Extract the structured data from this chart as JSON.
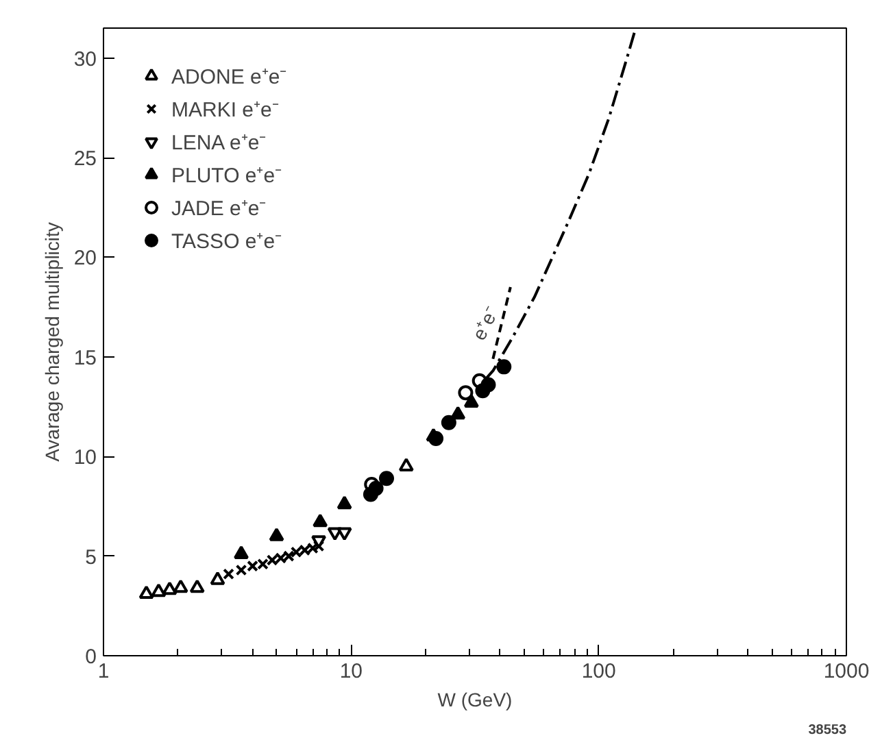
{
  "chart_data": {
    "type": "scatter",
    "xlabel": "W (GeV)",
    "ylabel": "Avarage charged multiplicity",
    "log": "x",
    "xlim": [
      1,
      1000
    ],
    "xticks": [
      1,
      10,
      100,
      1000
    ],
    "ylim": [
      0,
      31.5
    ],
    "yticks": [
      0,
      5,
      10,
      15,
      20,
      25,
      30
    ],
    "grid": false,
    "legend": "top left",
    "series": [
      {
        "name": "ADONE e⁺e⁻",
        "color": "#000000",
        "marker": "triangle_open",
        "x": [
          1.49,
          1.67,
          1.85,
          2.05,
          2.39,
          2.89,
          16.7
        ],
        "values": [
          3.1,
          3.2,
          3.3,
          3.4,
          3.4,
          3.8,
          9.5
        ]
      },
      {
        "name": "MARKI e⁺e⁻",
        "color": "#000000",
        "marker": "cross",
        "x": [
          3.2,
          3.6,
          4.0,
          4.4,
          4.8,
          5.2,
          5.6,
          6.0,
          6.5,
          7.0,
          7.4
        ],
        "values": [
          4.1,
          4.3,
          4.5,
          4.6,
          4.8,
          4.9,
          5.0,
          5.2,
          5.3,
          5.4,
          5.5
        ]
      },
      {
        "name": "LENA e⁺e⁻",
        "color": "#000000",
        "x": [
          7.4,
          8.6,
          9.4
        ],
        "values": [
          5.8,
          6.2,
          6.2
        ]
      },
      {
        "name": "PLUTO e⁺e⁻",
        "color": "#000000",
        "marker": "triangle",
        "x": [
          3.6,
          5.0,
          7.5,
          9.4,
          21.5,
          27,
          30.6
        ],
        "values": [
          5.1,
          6.0,
          6.7,
          7.6,
          11.0,
          12.1,
          12.7
        ]
      },
      {
        "name": "JADE e⁺e⁻",
        "color": "#000000",
        "marker": "circle_open",
        "x": [
          12.1,
          29,
          33
        ],
        "values": [
          8.6,
          13.2,
          13.8
        ]
      },
      {
        "name": "TASSO e⁺e⁻",
        "color": "#000000",
        "marker": "circle",
        "x": [
          12.0,
          12.6,
          13.9,
          22,
          24.8,
          34,
          35.8,
          41.4
        ],
        "values": [
          8.1,
          8.4,
          8.9,
          10.9,
          11.7,
          13.3,
          13.6,
          14.5
        ]
      },
      {
        "type": "line",
        "color": "#000000",
        "marker": "none",
        "line_style": "dashed",
        "x": [
          35,
          37.4,
          45,
          55,
          65,
          75.5,
          91.4,
          110,
          130,
          141
        ],
        "values": [
          13.9,
          14.3,
          16.0,
          18.0,
          20.0,
          21.8,
          24.2,
          27.0,
          30.0,
          31.5
        ]
      },
      {
        "type": "line",
        "color": "#000000",
        "marker": "none",
        "line_style": "dotted",
        "x": [
          37.4,
          44
        ],
        "values": [
          14.9,
          18.5
        ]
      }
    ],
    "annotations": [
      "e⁺e⁻",
      "38553"
    ]
  }
}
